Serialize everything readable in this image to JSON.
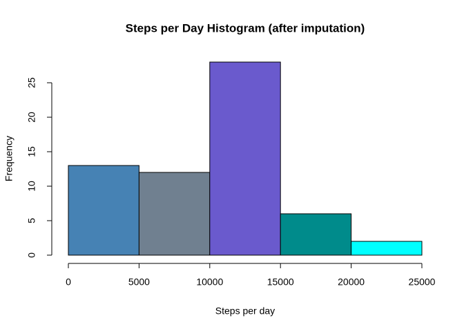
{
  "chart_data": {
    "type": "histogram",
    "title": "Steps per Day Histogram (after imputation)",
    "x_label": "Steps per day",
    "y_label": "Frequency",
    "bins": [
      0,
      5000,
      10000,
      15000,
      20000,
      25000
    ],
    "counts": [
      13,
      12,
      28,
      6,
      2
    ],
    "colors": [
      "#4682b4",
      "#708090",
      "#6a5acd",
      "#008b8b",
      "#00ffff"
    ],
    "xlim": [
      0,
      25000
    ],
    "xticks": [
      0,
      5000,
      10000,
      15000,
      20000,
      25000
    ],
    "ylim": [
      0,
      28
    ],
    "yticks": [
      0,
      5,
      10,
      15,
      20,
      25
    ]
  }
}
